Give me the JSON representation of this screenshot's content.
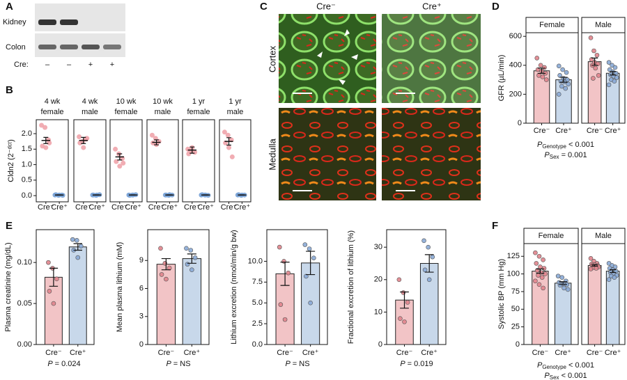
{
  "blot": {
    "panel": "A",
    "rows": [
      "Kidney",
      "Colon"
    ],
    "genotype_label": "Cre:",
    "lanes": [
      "–",
      "–",
      "+",
      "+"
    ]
  },
  "micrograph": {
    "panel": "C",
    "columns": [
      "Cre⁻",
      "Cre⁺"
    ],
    "rows": [
      "Cortex",
      "Medulla"
    ]
  },
  "chart_data": [
    {
      "type": "dot",
      "panel": "B",
      "ylabel": "Cldn2 (2⁻ᵈᶜᵗ)",
      "ylim": [
        -0.2,
        2.45
      ],
      "yticks": [
        {
          "value": 0,
          "label": "0.0"
        },
        0.5,
        {
          "value": 1,
          "label": "1.0"
        },
        1.5,
        {
          "value": 2,
          "label": "2.0"
        }
      ],
      "colors": [
        "#e0a0a6",
        "#7aa3d6"
      ],
      "point_colors": [
        "#f0a4ab",
        "#7aa3d6"
      ],
      "facets": [
        {
          "title": [
            "4 wk",
            "female"
          ],
          "categories": [
            "Cre⁻",
            "Cre⁺"
          ],
          "values": [
            1.78,
            0.02
          ],
          "errors": [
            0.1,
            0.005
          ],
          "points": [
            [
              2.27,
              2.2,
              1.8,
              1.6,
              1.55,
              1.7
            ],
            [
              0.02,
              0.01,
              0.02,
              0.03,
              0.02,
              0.01
            ]
          ]
        },
        {
          "title": [
            "4 wk",
            "male"
          ],
          "categories": [
            "Cre⁻",
            "Cre⁺"
          ],
          "values": [
            1.78,
            0.02
          ],
          "errors": [
            0.1,
            0.005
          ],
          "points": [
            [
              1.9,
              1.75,
              1.82,
              1.7,
              1.55,
              1.85
            ],
            [
              0.02,
              0.01,
              0.03,
              0.02,
              0.02
            ]
          ]
        },
        {
          "title": [
            "10 wk",
            "female"
          ],
          "categories": [
            "Cre⁻",
            "Cre⁺"
          ],
          "values": [
            1.25,
            0.02
          ],
          "errors": [
            0.1,
            0.005
          ],
          "points": [
            [
              1.5,
              1.35,
              1.2,
              1.1,
              0.95,
              1.05
            ],
            [
              0.02,
              0.02,
              0.03,
              0.01,
              0.02
            ]
          ]
        },
        {
          "title": [
            "10 wk",
            "male"
          ],
          "categories": [
            "Cre⁻",
            "Cre⁺"
          ],
          "values": [
            1.72,
            0.02
          ],
          "errors": [
            0.08,
            0.005
          ],
          "points": [
            [
              1.95,
              1.85,
              1.75,
              1.7,
              1.65
            ],
            [
              0.02,
              0.01,
              0.02,
              0.02,
              0.03
            ]
          ]
        },
        {
          "title": [
            "1 yr",
            "female"
          ],
          "categories": [
            "Cre⁻",
            "Cre⁺"
          ],
          "values": [
            1.47,
            0.02
          ],
          "errors": [
            0.1,
            0.005
          ],
          "points": [
            [
              1.5,
              1.45,
              1.4,
              1.35,
              1.55
            ],
            [
              0.02,
              0.02,
              0.01,
              0.03,
              0.02
            ]
          ]
        },
        {
          "title": [
            "1 yr",
            "male"
          ],
          "categories": [
            "Cre⁻",
            "Cre⁺"
          ],
          "values": [
            1.75,
            0.02
          ],
          "errors": [
            0.12,
            0.005
          ],
          "points": [
            [
              2.05,
              1.95,
              1.8,
              1.7,
              1.55,
              1.25
            ],
            [
              0.02,
              0.01,
              0.02,
              0.03,
              0.02
            ]
          ]
        }
      ]
    },
    {
      "type": "bar",
      "panel": "D",
      "ylabel": "GFR (µL/min)",
      "ylim": [
        0,
        625
      ],
      "yticks": [
        0,
        200,
        400,
        600
      ],
      "colors": [
        "#f2c4c6",
        "#c8d8ea"
      ],
      "point_colors": [
        "#e0848c",
        "#8aaad6"
      ],
      "facets": [
        {
          "title": [
            "Female"
          ],
          "categories": [
            "Cre⁻",
            "Cre⁺"
          ],
          "values": [
            362,
            300
          ],
          "errors": [
            18,
            17
          ],
          "points": [
            [
              450,
              400,
              385,
              370,
              360,
              345,
              330,
              320,
              300
            ],
            [
              395,
              370,
              350,
              330,
              310,
              300,
              290,
              285,
              270,
              255,
              240,
              200
            ]
          ]
        },
        {
          "title": [
            "Male"
          ],
          "categories": [
            "Cre⁻",
            "Cre⁺"
          ],
          "values": [
            425,
            345
          ],
          "errors": [
            25,
            12
          ],
          "points": [
            [
              590,
              500,
              470,
              440,
              420,
              410,
              400,
              380,
              330,
              310
            ],
            [
              420,
              400,
              385,
              370,
              355,
              345,
              335,
              325,
              315,
              300,
              290,
              265
            ]
          ]
        }
      ],
      "stats": [
        {
          "symbol": "P",
          "subscript": "Genotype",
          "text": "< 0.001"
        },
        {
          "symbol": "P",
          "subscript": "Sex",
          "text": "= 0.001"
        }
      ]
    },
    {
      "type": "bar",
      "panel": "E",
      "ylabel": "Plasma creatinine (mg/dL)",
      "ylim": [
        0,
        0.14
      ],
      "yticks": [
        {
          "value": 0,
          "label": "0.00"
        },
        0.05,
        {
          "value": 0.1,
          "label": "0.10"
        }
      ],
      "colors": [
        "#f2c4c6",
        "#c8d8ea"
      ],
      "point_colors": [
        "#e0848c",
        "#8aaad6"
      ],
      "facets": [
        {
          "categories": [
            "Cre⁻",
            "Cre⁺"
          ],
          "values": [
            0.082,
            0.119
          ],
          "errors": [
            0.011,
            0.004
          ],
          "points": [
            [
              0.1,
              0.093,
              0.08,
              0.065,
              0.05
            ],
            [
              0.128,
              0.127,
              0.12,
              0.115,
              0.106
            ]
          ]
        }
      ],
      "stats": [
        {
          "symbol": "P",
          "text": "= 0.024"
        }
      ]
    },
    {
      "type": "bar",
      "ylabel": "Mean plasma lithium (mM)",
      "ylim": [
        0,
        12.3
      ],
      "yticks": [
        0,
        3,
        6,
        9
      ],
      "colors": [
        "#f2c4c6",
        "#c8d8ea"
      ],
      "point_colors": [
        "#e0848c",
        "#8aaad6"
      ],
      "facets": [
        {
          "categories": [
            "Cre⁻",
            "Cre⁺"
          ],
          "values": [
            8.6,
            9.2
          ],
          "errors": [
            0.6,
            0.5
          ],
          "points": [
            [
              10.3,
              8.7,
              8.2,
              7.5,
              7.0
            ],
            [
              10.3,
              10.1,
              9.3,
              8.6,
              8.0
            ]
          ]
        }
      ],
      "stats": [
        {
          "symbol": "P",
          "text": "= NS"
        }
      ]
    },
    {
      "type": "bar",
      "ylabel": "Lithium excretion (nmol/min/g bw)",
      "ylim": [
        0,
        13.8
      ],
      "yticks": [
        {
          "value": 0,
          "label": "0.0"
        },
        2.5,
        {
          "value": 5,
          "label": "5.0"
        },
        7.5,
        {
          "value": 10,
          "label": "10.0"
        }
      ],
      "colors": [
        "#f2c4c6",
        "#c8d8ea"
      ],
      "point_colors": [
        "#e0848c",
        "#8aaad6"
      ],
      "facets": [
        {
          "categories": [
            "Cre⁻",
            "Cre⁺"
          ],
          "values": [
            8.5,
            9.8
          ],
          "errors": [
            1.4,
            1.4
          ],
          "points": [
            [
              11.7,
              10.0,
              8.6,
              4.8,
              3.0
            ],
            [
              12.0,
              11.5,
              10.4,
              8.2,
              5.0
            ]
          ]
        }
      ],
      "stats": [
        {
          "symbol": "P",
          "text": "= NS"
        }
      ]
    },
    {
      "type": "bar",
      "ylabel": "Fractional excretion of lithium (%)",
      "ylim": [
        0,
        35.4
      ],
      "yticks": [
        0,
        10,
        20,
        30
      ],
      "colors": [
        "#f2c4c6",
        "#c8d8ea"
      ],
      "point_colors": [
        "#e0848c",
        "#8aaad6"
      ],
      "facets": [
        {
          "categories": [
            "Cre⁻",
            "Cre⁺"
          ],
          "values": [
            13.7,
            25
          ],
          "errors": [
            2.5,
            2.7
          ],
          "points": [
            [
              20,
              16,
              13,
              8,
              7
            ],
            [
              32,
              30,
              27,
              23,
              20
            ]
          ]
        }
      ],
      "stats": [
        {
          "symbol": "P",
          "text": "= 0.019"
        }
      ]
    },
    {
      "type": "bar",
      "panel": "F",
      "ylabel": "Systolic BP (mm Hg)",
      "ylim": [
        0,
        143
      ],
      "yticks": [
        0,
        25,
        50,
        75,
        100,
        125
      ],
      "colors": [
        "#f2c4c6",
        "#c8d8ea"
      ],
      "point_colors": [
        "#e0848c",
        "#8aaad6"
      ],
      "facets": [
        {
          "title": [
            "Female"
          ],
          "categories": [
            "Cre⁻",
            "Cre⁺"
          ],
          "values": [
            104,
            87
          ],
          "errors": [
            3,
            2
          ],
          "points": [
            [
              130,
              125,
              120,
              115,
              110,
              108,
              105,
              102,
              100,
              98,
              95,
              90,
              85,
              80
            ],
            [
              97,
              95,
              90,
              88,
              86,
              85,
              84,
              80,
              78
            ]
          ]
        },
        {
          "title": [
            "Male"
          ],
          "categories": [
            "Cre⁻",
            "Cre⁺"
          ],
          "values": [
            112,
            104
          ],
          "errors": [
            1,
            2
          ],
          "points": [
            [
              122,
              118,
              115,
              114,
              113,
              112,
              112,
              111,
              110,
              109,
              108,
              107
            ],
            [
              115,
              112,
              110,
              108,
              106,
              104,
              102,
              100,
              98,
              97,
              95,
              92
            ]
          ]
        }
      ],
      "stats": [
        {
          "symbol": "P",
          "subscript": "Genotype",
          "text": "< 0.001"
        },
        {
          "symbol": "P",
          "subscript": "Sex",
          "text": "< 0.001"
        }
      ]
    }
  ]
}
